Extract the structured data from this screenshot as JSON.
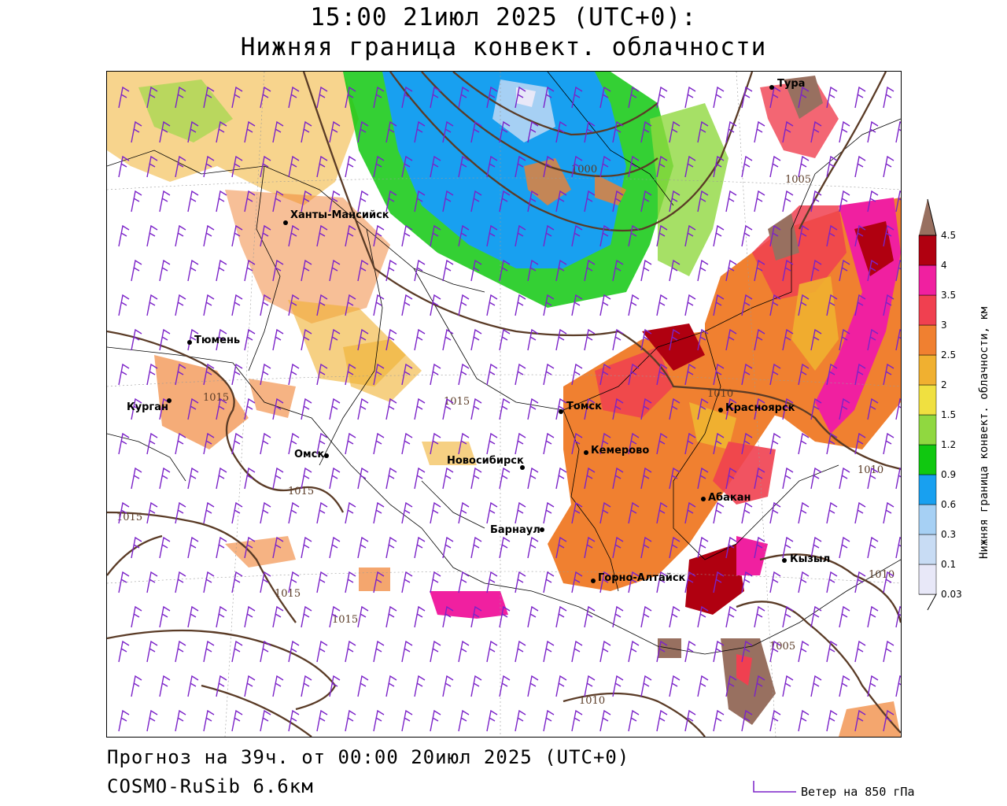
{
  "header": {
    "title": "15:00 21июл 2025 (UTC+0):",
    "subtitle": "Нижняя граница конвект. облачности"
  },
  "footer": {
    "forecast": "Прогноз на 39ч. от 00:00 20июл 2025 (UTC+0)",
    "model": "COSMO-RuSib 6.6км",
    "wind_legend": "Ветер на 850 гПа"
  },
  "colorbar": {
    "title": "Нижняя граница конвект. облачности, км",
    "levels": [
      "0.03",
      "0.1",
      "0.3",
      "0.6",
      "0.9",
      "1.2",
      "1.5",
      "2",
      "2.5",
      "3",
      "3.5",
      "4",
      "4.5"
    ],
    "colors": [
      "#e8e8f8",
      "#c8dcf4",
      "#a6d0f4",
      "#18a0f0",
      "#10c810",
      "#90d840",
      "#f0e040",
      "#f0b030",
      "#f08030",
      "#f04050",
      "#f020a0",
      "#b00010",
      "#987060"
    ]
  },
  "map": {
    "cities": [
      {
        "name": "Тура"
      },
      {
        "name": "Ханты-Мансийск"
      },
      {
        "name": "Тюмень"
      },
      {
        "name": "Курган"
      },
      {
        "name": "Омск"
      },
      {
        "name": "Новосибирск"
      },
      {
        "name": "Томск"
      },
      {
        "name": "Красноярск"
      },
      {
        "name": "Кемерово"
      },
      {
        "name": "Абакан"
      },
      {
        "name": "Барнаул"
      },
      {
        "name": "Горно-Алтайск"
      },
      {
        "name": "Кызыл"
      }
    ],
    "isobars": [
      "1000",
      "1005",
      "1010",
      "1010",
      "1010",
      "1015",
      "1015",
      "1015",
      "1015",
      "1015",
      "1015",
      "1005",
      "1010"
    ]
  }
}
